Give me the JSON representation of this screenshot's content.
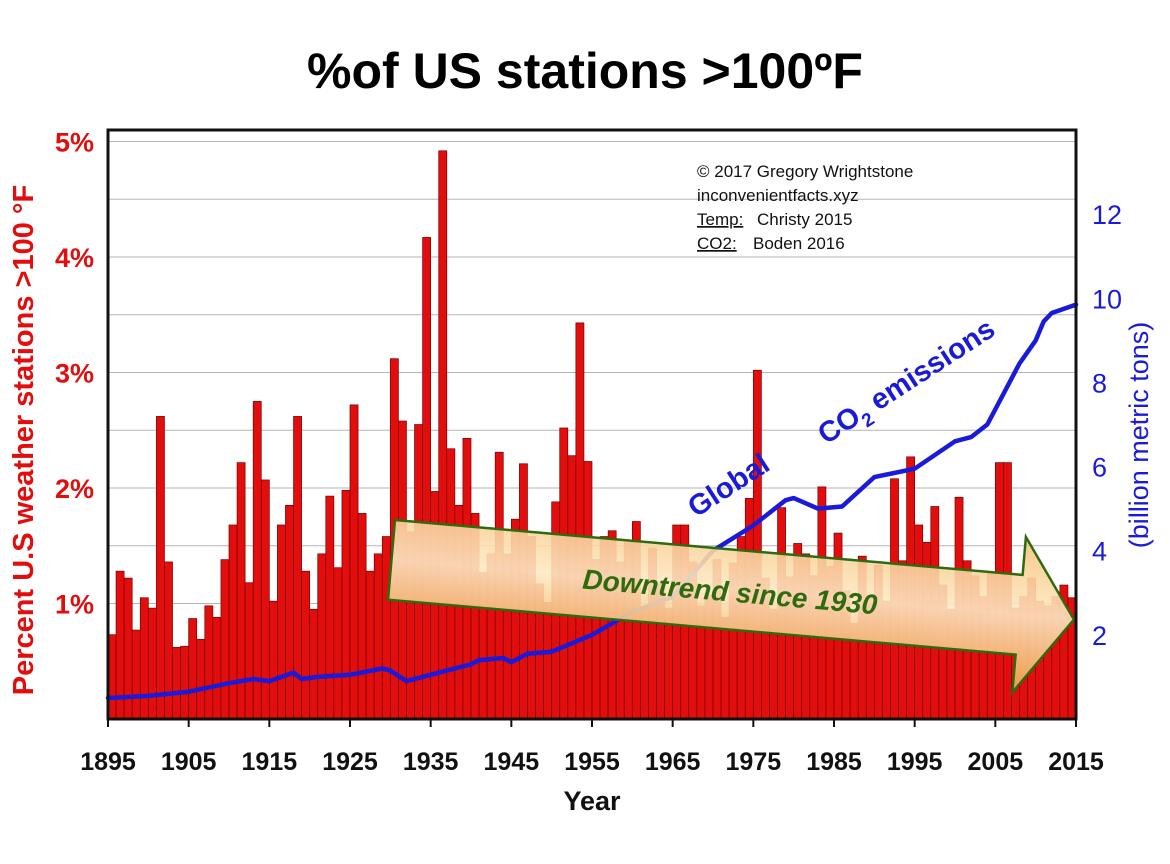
{
  "chart_data": {
    "type": "bar",
    "title": "%of US stations >100ºF",
    "xlabel": "Year",
    "ylabel_left": "Percent U.S weather stations >100 °F",
    "ylabel_right": "(billion metric tons)",
    "ylim_left": [
      0,
      5.1
    ],
    "ylim_right": [
      0,
      14
    ],
    "xlim": [
      1895,
      2015
    ],
    "x_ticks": [
      "1895",
      "1905",
      "1915",
      "1925",
      "1935",
      "1945",
      "1955",
      "1965",
      "1975",
      "1985",
      "1995",
      "2005",
      "2015"
    ],
    "y_ticks_left": [
      {
        "value": 1,
        "label": "1%"
      },
      {
        "value": 2,
        "label": "2%"
      },
      {
        "value": 3,
        "label": "3%"
      },
      {
        "value": 4,
        "label": "4%"
      },
      {
        "value": 5,
        "label": "5%"
      }
    ],
    "y_ticks_right": [
      {
        "value": 2,
        "label": "2"
      },
      {
        "value": 4,
        "label": "4"
      },
      {
        "value": 6,
        "label": "6"
      },
      {
        "value": 8,
        "label": "8"
      },
      {
        "value": 10,
        "label": "10"
      },
      {
        "value": 12,
        "label": "12"
      }
    ],
    "grid": true,
    "colors": {
      "bars": "#e20d0d",
      "bar_edge": "#7a0000",
      "co2_line": "#1a1adb",
      "arrow_fill": "#f4b96a",
      "arrow_edge": "#2e6b0f"
    },
    "series": [
      {
        "name": "Percent U.S weather stations >100 °F",
        "axis": "left",
        "start_year": 1895,
        "values": [
          0.73,
          1.28,
          1.22,
          0.77,
          1.05,
          0.96,
          2.62,
          1.36,
          0.62,
          0.63,
          0.87,
          0.69,
          0.98,
          0.88,
          1.38,
          1.68,
          2.22,
          1.18,
          2.75,
          2.07,
          1.02,
          1.68,
          1.85,
          2.62,
          1.28,
          0.95,
          1.43,
          1.93,
          1.31,
          1.98,
          2.72,
          1.78,
          1.28,
          1.43,
          1.58,
          3.12,
          2.58,
          1.62,
          2.55,
          4.17,
          1.97,
          4.92,
          2.34,
          1.85,
          2.43,
          1.78,
          1.27,
          1.43,
          2.31,
          1.43,
          1.73,
          2.21,
          1.58,
          1.17,
          1.01,
          1.88,
          2.52,
          2.28,
          3.43,
          2.23,
          1.38,
          1.58,
          1.63,
          1.36,
          1.55,
          1.71,
          0.96,
          1.48,
          1.17,
          0.96,
          1.68,
          1.68,
          1.36,
          0.98,
          1.07,
          1.38,
          0.88,
          1.35,
          1.58,
          1.91,
          3.02,
          1.22,
          0.95,
          1.83,
          1.23,
          1.52,
          1.43,
          1.24,
          2.01,
          1.32,
          1.61,
          1.11,
          0.83,
          1.41,
          1.07,
          1.33,
          1.02,
          2.08,
          1.37,
          2.27,
          1.68,
          1.53,
          1.84,
          1.16,
          0.95,
          1.92,
          1.37,
          1.24,
          1.06,
          1.26,
          2.22,
          2.22,
          0.96,
          1.06,
          1.22,
          1.02,
          0.98,
          1.06,
          1.16,
          1.05
        ]
      },
      {
        "name": "Global CO2 emissions",
        "axis": "right",
        "points": [
          [
            1895,
            0.5
          ],
          [
            1900,
            0.55
          ],
          [
            1905,
            0.65
          ],
          [
            1910,
            0.85
          ],
          [
            1913,
            0.95
          ],
          [
            1915,
            0.9
          ],
          [
            1918,
            1.1
          ],
          [
            1919,
            0.95
          ],
          [
            1921,
            1.0
          ],
          [
            1925,
            1.05
          ],
          [
            1929,
            1.2
          ],
          [
            1930,
            1.15
          ],
          [
            1932,
            0.9
          ],
          [
            1935,
            1.05
          ],
          [
            1937,
            1.15
          ],
          [
            1940,
            1.3
          ],
          [
            1941,
            1.4
          ],
          [
            1944,
            1.45
          ],
          [
            1945,
            1.35
          ],
          [
            1947,
            1.55
          ],
          [
            1950,
            1.6
          ],
          [
            1955,
            2.0
          ],
          [
            1960,
            2.55
          ],
          [
            1965,
            2.9
          ],
          [
            1970,
            4.0
          ],
          [
            1975,
            4.6
          ],
          [
            1979,
            5.2
          ],
          [
            1980,
            5.25
          ],
          [
            1983,
            5.0
          ],
          [
            1986,
            5.05
          ],
          [
            1990,
            5.75
          ],
          [
            1995,
            5.95
          ],
          [
            2000,
            6.6
          ],
          [
            2002,
            6.7
          ],
          [
            2004,
            7.0
          ],
          [
            2008,
            8.45
          ],
          [
            2010,
            9.0
          ],
          [
            2011,
            9.45
          ],
          [
            2012,
            9.65
          ],
          [
            2015,
            9.85
          ]
        ]
      }
    ],
    "annotations": {
      "credit_lines": [
        "© 2017 Gregory Wrightstone",
        "inconvenientfacts.xyz"
      ],
      "temp_source_label": "Temp:",
      "temp_source_value": "Christy 2015",
      "co2_source_label": "CO2:",
      "co2_source_value": "Boden 2016",
      "co2_label_word1": "Global",
      "co2_label_main": "CO",
      "co2_label_sub": "2",
      "co2_label_word3": "emissions",
      "arrow_label": "Downtrend since 1930"
    }
  }
}
